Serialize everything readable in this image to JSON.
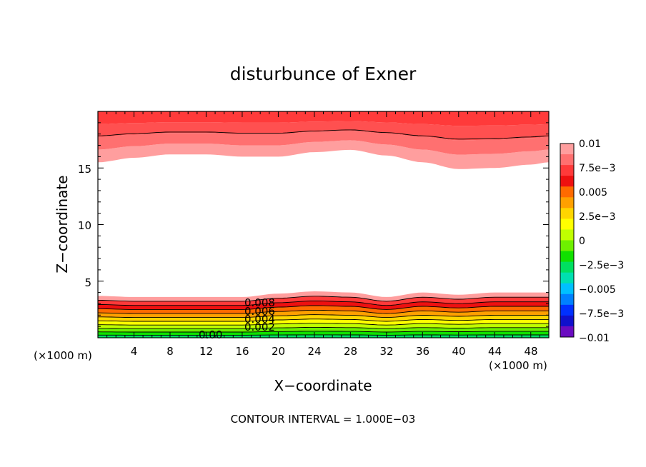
{
  "chart_data": {
    "type": "contour",
    "title": "disturbunce of Exner",
    "xlabel": "X−coordinate",
    "ylabel": "Z−coordinate",
    "x_unit": "(×1000 m)",
    "x_unit_right": "(×1000 m)",
    "xlim": [
      0,
      50
    ],
    "ylim": [
      0,
      20
    ],
    "x_ticks": [
      "4",
      "8",
      "12",
      "16",
      "20",
      "24",
      "28",
      "32",
      "36",
      "40",
      "44",
      "48"
    ],
    "y_ticks": [
      "5",
      "10",
      "15"
    ],
    "footer": "CONTOUR INTERVAL = 1.000E−03",
    "contour_labels": [
      "0.008",
      "0.006",
      "0.004",
      "0.002",
      "0.00"
    ],
    "colorbar": {
      "labels": [
        "0.01",
        "7.5e−3",
        "0.005",
        "2.5e−3",
        "0",
        "−2.5e−3",
        "−0.005",
        "−7.5e−3",
        "−0.01"
      ],
      "colors": [
        "#ff9e9e",
        "#ff7070",
        "#ff3a3a",
        "#ee1010",
        "#ff6a00",
        "#ffa000",
        "#ffd500",
        "#ffff00",
        "#c0ff00",
        "#6ef000",
        "#10e000",
        "#00e060",
        "#00e0b0",
        "#00c0ff",
        "#0080ff",
        "#0030ff",
        "#1010cc",
        "#6a0cc0"
      ]
    },
    "bottom_band": {
      "x": [
        0,
        4,
        8,
        12,
        16,
        20,
        24,
        28,
        32,
        36,
        40,
        44,
        48,
        50
      ],
      "top_z": [
        3.7,
        3.6,
        3.6,
        3.6,
        3.6,
        3.9,
        4.1,
        4.0,
        3.6,
        4.0,
        3.8,
        4.0,
        4.0,
        4.0
      ]
    },
    "top_band": {
      "x": [
        0,
        4,
        8,
        12,
        16,
        20,
        24,
        28,
        32,
        36,
        40,
        44,
        48,
        50
      ],
      "bottom_z": [
        15.5,
        15.9,
        16.2,
        16.2,
        16.0,
        16.0,
        16.4,
        16.6,
        16.1,
        15.5,
        14.9,
        15.0,
        15.3,
        15.5
      ]
    }
  }
}
